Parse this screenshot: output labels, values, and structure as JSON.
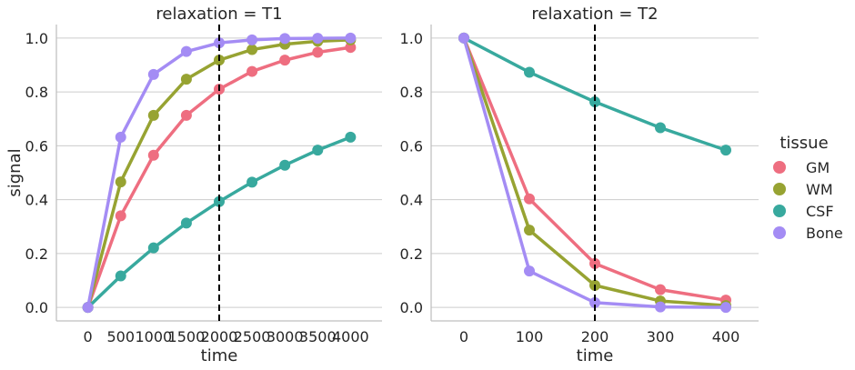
{
  "chart_data": [
    {
      "type": "line",
      "title": "relaxation = T1",
      "xlabel": "time",
      "ylabel": "signal",
      "x": [
        0,
        500,
        1000,
        1500,
        2000,
        2500,
        3000,
        3500,
        4000
      ],
      "x_tick_labels": [
        "0",
        "500",
        "1000",
        "1500",
        "2000",
        "2500",
        "3000",
        "3500",
        "4000"
      ],
      "ylim": [
        -0.05,
        1.05
      ],
      "y_ticks": [
        "0.0",
        "0.2",
        "0.4",
        "0.6",
        "0.8",
        "1.0"
      ],
      "y_tick_values": [
        0,
        0.2,
        0.4,
        0.6,
        0.8,
        1.0
      ],
      "vline_x": 2000,
      "grid": "horizontal",
      "series": [
        {
          "name": "GM",
          "values": [
            0,
            0.34,
            0.565,
            0.713,
            0.81,
            0.876,
            0.918,
            0.947,
            0.965
          ]
        },
        {
          "name": "WM",
          "values": [
            0,
            0.466,
            0.713,
            0.847,
            0.918,
            0.957,
            0.977,
            0.988,
            0.993
          ]
        },
        {
          "name": "CSF",
          "values": [
            0,
            0.117,
            0.221,
            0.313,
            0.393,
            0.465,
            0.528,
            0.584,
            0.632
          ]
        },
        {
          "name": "Bone",
          "values": [
            0,
            0.632,
            0.865,
            0.95,
            0.982,
            0.993,
            0.998,
            0.999,
            1.0
          ]
        }
      ]
    },
    {
      "type": "line",
      "title": "relaxation = T2",
      "xlabel": "time",
      "ylabel": "",
      "x": [
        0,
        100,
        200,
        300,
        400
      ],
      "x_tick_labels": [
        "0",
        "100",
        "200",
        "300",
        "400"
      ],
      "ylim": [
        -0.05,
        1.05
      ],
      "y_ticks": [
        "0.0",
        "0.2",
        "0.4",
        "0.6",
        "0.8",
        "1.0"
      ],
      "y_tick_values": [
        0,
        0.2,
        0.4,
        0.6,
        0.8,
        1.0
      ],
      "vline_x": 200,
      "grid": "horizontal",
      "series": [
        {
          "name": "GM",
          "values": [
            1.0,
            0.403,
            0.163,
            0.066,
            0.027
          ]
        },
        {
          "name": "WM",
          "values": [
            1.0,
            0.287,
            0.082,
            0.024,
            0.007
          ]
        },
        {
          "name": "CSF",
          "values": [
            1.0,
            0.873,
            0.763,
            0.667,
            0.584
          ]
        },
        {
          "name": "Bone",
          "values": [
            1.0,
            0.135,
            0.018,
            0.002,
            0.0
          ]
        }
      ]
    }
  ],
  "legend": {
    "title": "tissue",
    "placement": "right",
    "items": [
      {
        "name": "GM",
        "color": "#ee6e80"
      },
      {
        "name": "WM",
        "color": "#97a332"
      },
      {
        "name": "CSF",
        "color": "#38a99e"
      },
      {
        "name": "Bone",
        "color": "#a48cf4"
      }
    ]
  }
}
